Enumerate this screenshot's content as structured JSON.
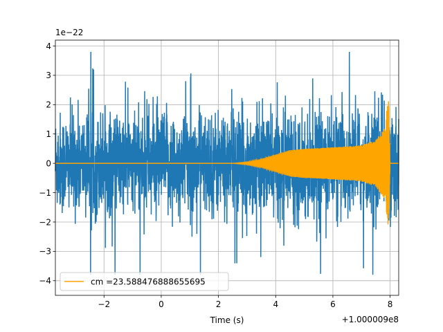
{
  "chart_data": {
    "type": "line",
    "xlabel": "Time (s)",
    "ylabel": "",
    "y_exponent_label": "1e−22",
    "x_offset_label": "+1.000009e8",
    "xlim": [
      -3.7,
      8.3
    ],
    "ylim": [
      -4.5,
      4.2
    ],
    "x_ticks": [
      -2,
      0,
      2,
      4,
      6,
      8
    ],
    "x_tick_labels": [
      "−2",
      "0",
      "2",
      "4",
      "6",
      "8"
    ],
    "y_ticks": [
      -4,
      -3,
      -2,
      -1,
      0,
      1,
      2,
      3,
      4
    ],
    "y_tick_labels": [
      "−4",
      "−3",
      "−2",
      "−1",
      "0",
      "1",
      "2",
      "3",
      "4"
    ],
    "grid": true,
    "legend": {
      "placement": "lower-left"
    },
    "series": [
      {
        "color": "#1f77b4",
        "description_free": true,
        "noise_envelope": {
          "typical_amplitude": 1.2,
          "peak_amplitude": 3.8,
          "x_range": [
            -3.7,
            8.3
          ]
        }
      },
      {
        "name": "cm =23.588476888655695",
        "color": "#ffa500",
        "chirp_envelope": {
          "x": [
            -3.7,
            2.5,
            3.0,
            3.5,
            4.0,
            4.5,
            5.0,
            5.5,
            6.0,
            6.5,
            7.0,
            7.5,
            7.8,
            7.95,
            8.0,
            8.3
          ],
          "amplitude": [
            0,
            0,
            0.05,
            0.15,
            0.3,
            0.45,
            0.5,
            0.52,
            0.55,
            0.58,
            0.62,
            0.8,
            1.2,
            2.3,
            0,
            0
          ]
        }
      }
    ]
  }
}
